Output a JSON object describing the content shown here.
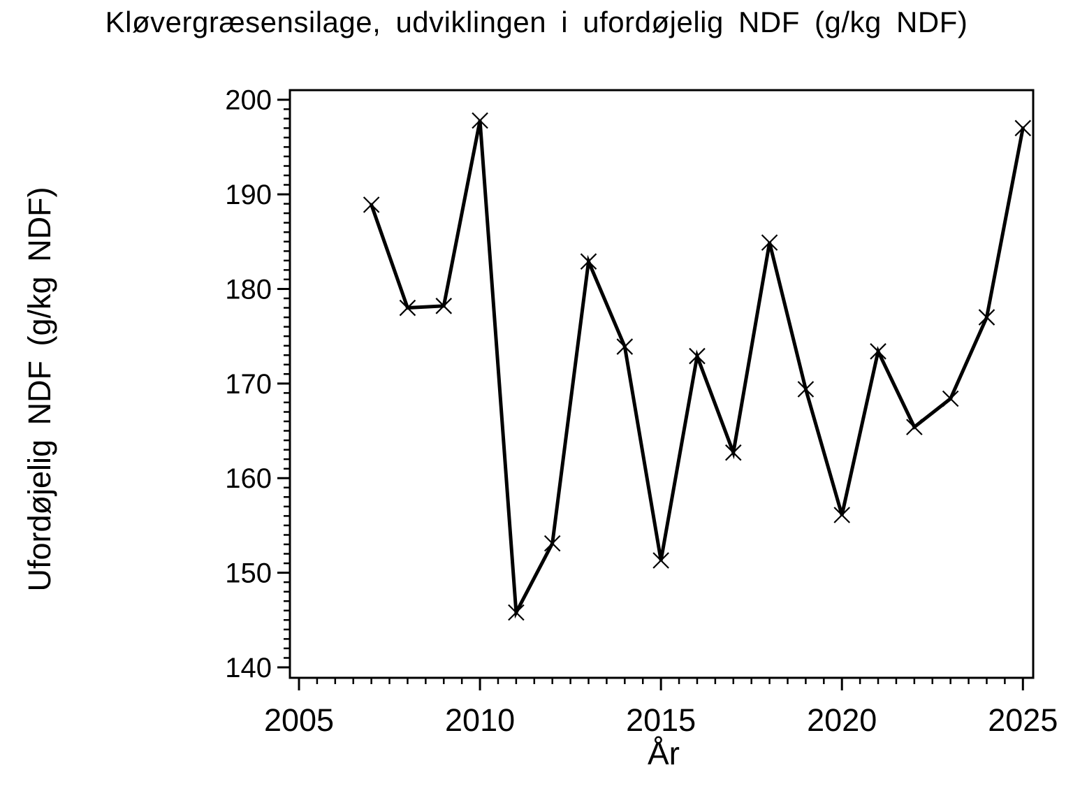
{
  "chart_data": {
    "type": "line",
    "title": "Kløvergræsensilage, udviklingen i ufordøjelig NDF (g/kg NDF)",
    "xlabel": "År",
    "ylabel": "Ufordøjelig NDF (g/kg NDF)",
    "x": [
      2007,
      2008,
      2009,
      2010,
      2011,
      2012,
      2013,
      2014,
      2015,
      2016,
      2017,
      2018,
      2019,
      2020,
      2021,
      2022,
      2023,
      2024,
      2025
    ],
    "values": [
      188.9,
      178.0,
      178.2,
      197.8,
      145.8,
      153.1,
      182.9,
      173.9,
      151.3,
      172.9,
      162.7,
      184.9,
      169.4,
      156.1,
      173.4,
      165.4,
      168.4,
      177.0,
      197.0
    ],
    "xlim": [
      2005,
      2025
    ],
    "ylim": [
      140,
      200
    ],
    "x_major_ticks": [
      2005,
      2010,
      2015,
      2020,
      2025
    ],
    "y_major_ticks": [
      140,
      150,
      160,
      170,
      180,
      190,
      200
    ],
    "x_minor_tick_step": 0.5,
    "y_minor_tick_step": 1,
    "grid": false,
    "legend": false,
    "marker": "x",
    "line_color": "#000000",
    "axis_color": "#000000",
    "text_color": "#000000",
    "background_color": "#ffffff"
  }
}
